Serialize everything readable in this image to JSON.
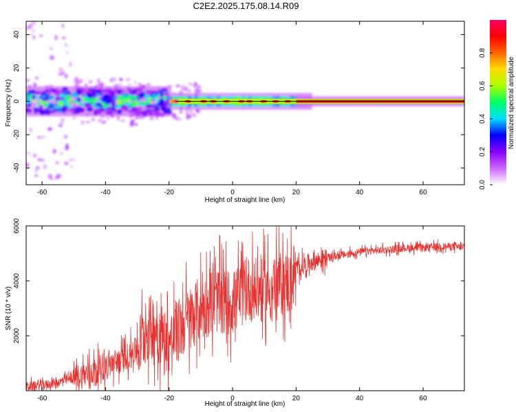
{
  "title": "C2E2.2025.175.08.14.R09",
  "colors": {
    "snr_line": "#e8302e",
    "axes": "#000000",
    "centerline": "#000000"
  },
  "chart_data": [
    {
      "type": "heatmap",
      "xlabel": "Height of straight line (km)",
      "ylabel": "Frequency (Hz)",
      "xlim": [
        -65,
        73
      ],
      "ylim": [
        -50,
        48
      ],
      "xticks": [
        -60,
        -40,
        -20,
        0,
        20,
        40,
        60
      ],
      "yticks": [
        -40,
        -20,
        0,
        20,
        40
      ],
      "colorbar": {
        "label": "Normalized spectral amplitude",
        "range": [
          0,
          1
        ],
        "ticks": [
          0.0,
          0.2,
          0.4,
          0.6,
          0.8
        ],
        "tick_labels": [
          "0.0",
          "0.2",
          "0.4",
          "0.6",
          "0.8"
        ],
        "colormap": [
          "#ffffff",
          "#cc66ff",
          "#8800ff",
          "#0000ff",
          "#00ddff",
          "#00ff66",
          "#aaff00",
          "#ffdd00",
          "#ff6600",
          "#ff0000",
          "#ff0066"
        ]
      },
      "bands": [
        {
          "x": [
            -65,
            -20
          ],
          "freq_center": 0,
          "half_width_hz": 7,
          "level": 0.45,
          "note": "noisy broadband region"
        },
        {
          "x": [
            -20,
            20
          ],
          "freq_center": 0,
          "half_width_hz": 3,
          "level": 0.75
        },
        {
          "x": [
            20,
            73
          ],
          "freq_center": 0,
          "half_width_hz": 1.5,
          "level": 0.95
        }
      ]
    },
    {
      "type": "line",
      "xlabel": "Height of straight line (km)",
      "ylabel": "SNR (10 * v/v)",
      "xlim": [
        -65,
        73
      ],
      "ylim": [
        0,
        6000
      ],
      "xticks": [
        -60,
        -40,
        -20,
        0,
        20,
        40,
        60
      ],
      "yticks": [
        2000,
        4000,
        6000
      ],
      "series": [
        {
          "x": [
            -65,
            -60,
            -55,
            -50,
            -45,
            -40,
            -35,
            -30,
            -27,
            -25,
            -20,
            -15,
            -10,
            -5,
            0,
            5,
            10,
            15,
            18,
            20,
            25,
            30,
            35,
            40,
            45,
            50,
            55,
            60,
            65,
            70,
            73
          ],
          "y": [
            150,
            200,
            300,
            450,
            650,
            900,
            1100,
            1500,
            2200,
            2400,
            1700,
            2500,
            3000,
            3300,
            3200,
            3700,
            3600,
            3900,
            3900,
            4400,
            4700,
            4850,
            4950,
            5050,
            5100,
            5150,
            5200,
            5200,
            5250,
            5250,
            5200
          ]
        }
      ]
    }
  ]
}
